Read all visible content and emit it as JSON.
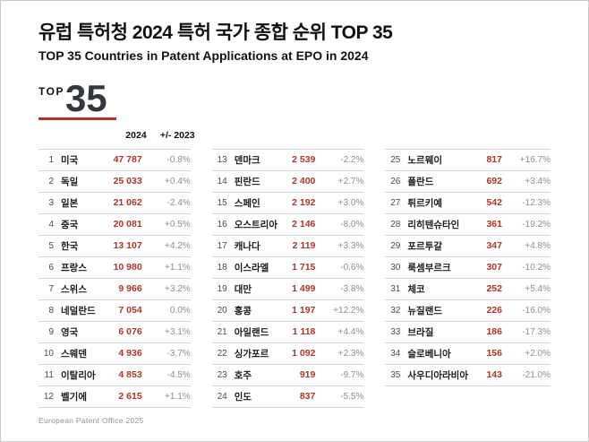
{
  "header": {
    "title_ko": "유럽 특허청 2024 특허 국가 종합 순위 TOP 35",
    "title_en": "TOP 35 Countries in Patent Applications at EPO in 2024"
  },
  "logo": {
    "prefix": "TOP",
    "number": "35"
  },
  "table_headers": {
    "year": "2024",
    "change": "+/- 2023"
  },
  "footer": {
    "credit": "European Patent Office 2025"
  },
  "colors": {
    "accent_red": "#b03427",
    "value_red": "#b03427",
    "muted_gray": "#8d8d8d",
    "text_dark": "#1b1b1b"
  },
  "chart_data": {
    "type": "table",
    "title": "유럽 특허청 2024 특허 국가 종합 순위 TOP 35",
    "subtitle": "TOP 35 Countries in Patent Applications at EPO in 2024",
    "columns": [
      "rank",
      "country",
      "applications_2024",
      "change_vs_2023"
    ],
    "layout": "three_columns_ranks_1-12_13-24_25-35",
    "rows": [
      {
        "rank": 1,
        "country": "미국",
        "value": "47 787",
        "change": "-0.8%"
      },
      {
        "rank": 2,
        "country": "독일",
        "value": "25 033",
        "change": "+0.4%"
      },
      {
        "rank": 3,
        "country": "일본",
        "value": "21 062",
        "change": "-2.4%"
      },
      {
        "rank": 4,
        "country": "중국",
        "value": "20 081",
        "change": "+0.5%"
      },
      {
        "rank": 5,
        "country": "한국",
        "value": "13 107",
        "change": "+4.2%"
      },
      {
        "rank": 6,
        "country": "프랑스",
        "value": "10 980",
        "change": "+1.1%"
      },
      {
        "rank": 7,
        "country": "스위스",
        "value": "9 966",
        "change": "+3.2%"
      },
      {
        "rank": 8,
        "country": "네덜란드",
        "value": "7 054",
        "change": "0.0%"
      },
      {
        "rank": 9,
        "country": "영국",
        "value": "6 076",
        "change": "+3.1%"
      },
      {
        "rank": 10,
        "country": "스웨덴",
        "value": "4 936",
        "change": "-3.7%"
      },
      {
        "rank": 11,
        "country": "이탈리아",
        "value": "4 853",
        "change": "-4.5%"
      },
      {
        "rank": 12,
        "country": "벨기에",
        "value": "2 615",
        "change": "+1.1%"
      },
      {
        "rank": 13,
        "country": "덴마크",
        "value": "2 539",
        "change": "-2.2%"
      },
      {
        "rank": 14,
        "country": "핀란드",
        "value": "2 400",
        "change": "+2.7%"
      },
      {
        "rank": 15,
        "country": "스페인",
        "value": "2 192",
        "change": "+3.0%"
      },
      {
        "rank": 16,
        "country": "오스트리아",
        "value": "2 146",
        "change": "-8.0%"
      },
      {
        "rank": 17,
        "country": "캐나다",
        "value": "2 119",
        "change": "+3.3%"
      },
      {
        "rank": 18,
        "country": "이스라엘",
        "value": "1 715",
        "change": "-0.6%"
      },
      {
        "rank": 19,
        "country": "대만",
        "value": "1 499",
        "change": "-3.8%"
      },
      {
        "rank": 20,
        "country": "홍콩",
        "value": "1 197",
        "change": "+12.2%"
      },
      {
        "rank": 21,
        "country": "아일랜드",
        "value": "1 118",
        "change": "+4.4%"
      },
      {
        "rank": 22,
        "country": "싱가포르",
        "value": "1 092",
        "change": "+2.3%"
      },
      {
        "rank": 23,
        "country": "호주",
        "value": "919",
        "change": "-9.7%"
      },
      {
        "rank": 24,
        "country": "인도",
        "value": "837",
        "change": "-5.5%"
      },
      {
        "rank": 25,
        "country": "노르웨이",
        "value": "817",
        "change": "+16.7%"
      },
      {
        "rank": 26,
        "country": "폴란드",
        "value": "692",
        "change": "+3.4%"
      },
      {
        "rank": 27,
        "country": "튀르키예",
        "value": "542",
        "change": "-12.3%"
      },
      {
        "rank": 28,
        "country": "리히텐슈타인",
        "value": "361",
        "change": "-19.2%"
      },
      {
        "rank": 29,
        "country": "포르투갈",
        "value": "347",
        "change": "+4.8%"
      },
      {
        "rank": 30,
        "country": "룩셈부르크",
        "value": "307",
        "change": "-10.2%"
      },
      {
        "rank": 31,
        "country": "체코",
        "value": "252",
        "change": "+5.4%"
      },
      {
        "rank": 32,
        "country": "뉴질랜드",
        "value": "226",
        "change": "-16.0%"
      },
      {
        "rank": 33,
        "country": "브라질",
        "value": "186",
        "change": "-17.3%"
      },
      {
        "rank": 34,
        "country": "슬로베니아",
        "value": "156",
        "change": "+2.0%"
      },
      {
        "rank": 35,
        "country": "사우디아라비아",
        "value": "143",
        "change": "-21.0%"
      }
    ]
  }
}
